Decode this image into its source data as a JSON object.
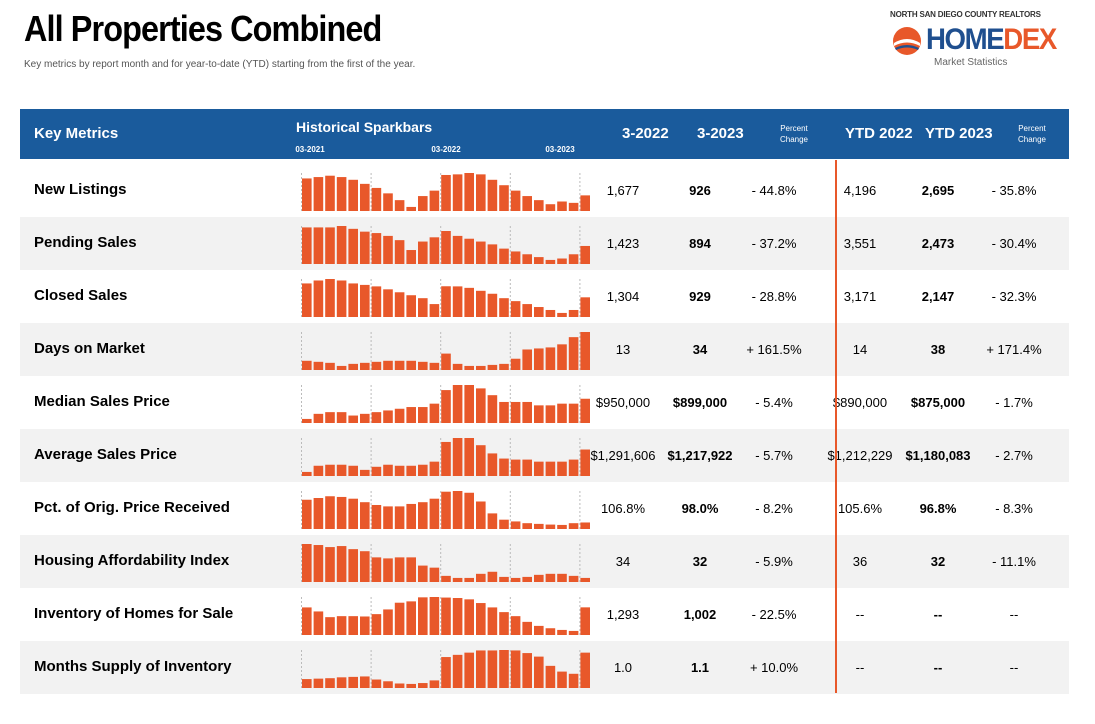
{
  "header": {
    "title": "All Properties Combined",
    "subtitle": "Key metrics by report month and for year-to-date (YTD) starting from the first of the year."
  },
  "logo": {
    "top_text": "NORTH SAN DIEGO COUNTY REALTORS",
    "name_part1": "HOME",
    "name_part2": "DEX",
    "sub_text": "Market Statistics",
    "colors": {
      "blue": "#1f4f8f",
      "orange": "#e8582a"
    }
  },
  "table_header": {
    "key_metrics": "Key Metrics",
    "historical_sparkbars": "Historical Sparkbars",
    "spark_ticks": [
      "03-2021",
      "03-2022",
      "03-2023"
    ],
    "col_month_prev": "3-2022",
    "col_month_curr": "3-2023",
    "col_pct": "Percent Change",
    "col_ytd_prev": "YTD 2022",
    "col_ytd_curr": "YTD 2023",
    "col_ytd_pct": "Percent Change",
    "header_color": "#1a5b9c",
    "bar_color": "#e8582a"
  },
  "chart_data": {
    "type": "bar",
    "description_x": "25 monthly sparkbars per metric, 03-2021 through 03-2023",
    "x": [
      "03-2021",
      "04-2021",
      "05-2021",
      "06-2021",
      "07-2021",
      "08-2021",
      "09-2021",
      "10-2021",
      "11-2021",
      "12-2021",
      "01-2022",
      "02-2022",
      "03-2022",
      "04-2022",
      "05-2022",
      "06-2022",
      "07-2022",
      "08-2022",
      "09-2022",
      "10-2022",
      "11-2022",
      "12-2022",
      "01-2023",
      "02-2023",
      "03-2023"
    ],
    "series": [
      {
        "name": "New Listings",
        "values": [
          1550,
          1600,
          1650,
          1600,
          1500,
          1350,
          1200,
          1000,
          750,
          500,
          900,
          1100,
          1677,
          1700,
          1750,
          1700,
          1500,
          1300,
          1100,
          900,
          750,
          600,
          700,
          650,
          926
        ]
      },
      {
        "name": "Pending Sales",
        "values": [
          1550,
          1550,
          1550,
          1600,
          1500,
          1400,
          1350,
          1250,
          1100,
          750,
          1050,
          1200,
          1423,
          1250,
          1150,
          1050,
          950,
          800,
          700,
          600,
          500,
          400,
          450,
          600,
          894
        ]
      },
      {
        "name": "Closed Sales",
        "values": [
          1400,
          1500,
          1550,
          1500,
          1400,
          1350,
          1300,
          1200,
          1100,
          1000,
          900,
          700,
          1304,
          1300,
          1250,
          1150,
          1050,
          900,
          800,
          700,
          600,
          500,
          400,
          500,
          929
        ]
      },
      {
        "name": "Days on Market",
        "values": [
          6,
          5,
          4,
          1,
          3,
          4,
          5,
          6,
          6,
          6,
          5,
          4,
          13,
          3,
          1,
          1,
          2,
          3,
          8,
          17,
          18,
          19,
          22,
          29,
          34
        ]
      },
      {
        "name": "Median Sales Price",
        "values": [
          780000,
          810000,
          820000,
          820000,
          800000,
          810000,
          820000,
          830000,
          840000,
          850000,
          850000,
          870000,
          950000,
          980000,
          980000,
          960000,
          920000,
          880000,
          880000,
          880000,
          860000,
          860000,
          870000,
          870000,
          899000
        ]
      },
      {
        "name": "Average Sales Price",
        "values": [
          1000000,
          1060000,
          1070000,
          1070000,
          1060000,
          1020000,
          1050000,
          1070000,
          1060000,
          1060000,
          1070000,
          1100000,
          1291606,
          1330000,
          1330000,
          1260000,
          1180000,
          1130000,
          1120000,
          1120000,
          1100000,
          1100000,
          1100000,
          1120000,
          1217922
        ]
      },
      {
        "name": "Pct. of Orig. Price Received",
        "values": [
          104.5,
          105.0,
          105.5,
          105.3,
          104.8,
          103.8,
          103.0,
          102.6,
          102.6,
          103.3,
          103.8,
          104.8,
          106.8,
          107.0,
          106.5,
          104.0,
          100.6,
          98.8,
          98.3,
          97.8,
          97.6,
          97.4,
          97.3,
          97.8,
          98.0
        ]
      },
      {
        "name": "Housing Affordability Index",
        "values": [
          65,
          64,
          62,
          63,
          60,
          58,
          52,
          51,
          52,
          52,
          44,
          42,
          34,
          32,
          32,
          36,
          38,
          33,
          32,
          33,
          35,
          36,
          36,
          34,
          32
        ]
      },
      {
        "name": "Inventory of Homes for Sale",
        "values": [
          1000,
          880,
          710,
          740,
          740,
          730,
          800,
          940,
          1140,
          1180,
          1300,
          1310,
          1293,
          1280,
          1240,
          1130,
          1000,
          860,
          740,
          570,
          450,
          380,
          330,
          300,
          1002
        ]
      },
      {
        "name": "Months Supply of Inventory",
        "values": [
          0.5,
          0.51,
          0.52,
          0.54,
          0.55,
          0.56,
          0.49,
          0.45,
          0.4,
          0.39,
          0.41,
          0.47,
          1.0,
          1.05,
          1.1,
          1.15,
          1.15,
          1.16,
          1.15,
          1.09,
          1.01,
          0.8,
          0.67,
          0.62,
          1.1
        ]
      }
    ]
  },
  "rows": [
    {
      "label": "New Listings",
      "m22": "1,677",
      "m23": "926",
      "pct": "- 44.8%",
      "y22": "4,196",
      "y23": "2,695",
      "ypct": "- 35.8%"
    },
    {
      "label": "Pending Sales",
      "m22": "1,423",
      "m23": "894",
      "pct": "- 37.2%",
      "y22": "3,551",
      "y23": "2,473",
      "ypct": "- 30.4%"
    },
    {
      "label": "Closed Sales",
      "m22": "1,304",
      "m23": "929",
      "pct": "- 28.8%",
      "y22": "3,171",
      "y23": "2,147",
      "ypct": "- 32.3%"
    },
    {
      "label": "Days on Market",
      "m22": "13",
      "m23": "34",
      "pct": "+ 161.5%",
      "y22": "14",
      "y23": "38",
      "ypct": "+ 171.4%"
    },
    {
      "label": "Median Sales Price",
      "m22": "$950,000",
      "m23": "$899,000",
      "pct": "- 5.4%",
      "y22": "$890,000",
      "y23": "$875,000",
      "ypct": "- 1.7%"
    },
    {
      "label": "Average Sales Price",
      "m22": "$1,291,606",
      "m23": "$1,217,922",
      "pct": "- 5.7%",
      "y22": "$1,212,229",
      "y23": "$1,180,083",
      "ypct": "- 2.7%"
    },
    {
      "label": "Pct. of Orig. Price Received",
      "m22": "106.8%",
      "m23": "98.0%",
      "pct": "- 8.2%",
      "y22": "105.6%",
      "y23": "96.8%",
      "ypct": "- 8.3%"
    },
    {
      "label": "Housing Affordability Index",
      "m22": "34",
      "m23": "32",
      "pct": "- 5.9%",
      "y22": "36",
      "y23": "32",
      "ypct": "- 11.1%"
    },
    {
      "label": "Inventory of Homes for Sale",
      "m22": "1,293",
      "m23": "1,002",
      "pct": "- 22.5%",
      "y22": "--",
      "y23": "--",
      "ypct": "--"
    },
    {
      "label": "Months Supply of Inventory",
      "m22": "1.0",
      "m23": "1.1",
      "pct": "+ 10.0%",
      "y22": "--",
      "y23": "--",
      "ypct": "--"
    }
  ]
}
